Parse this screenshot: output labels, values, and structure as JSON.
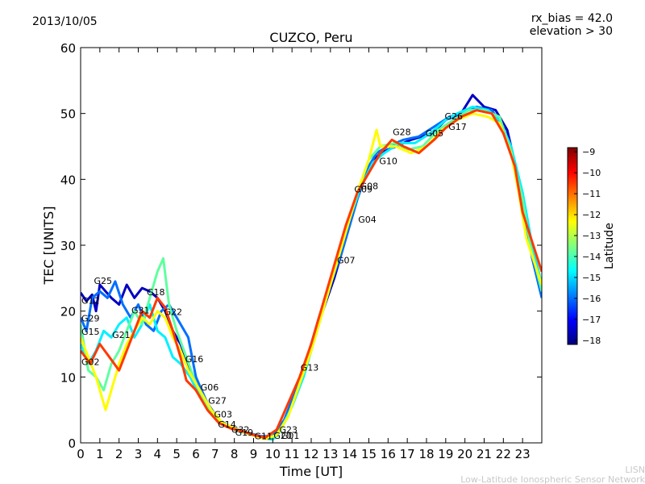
{
  "chart_data": {
    "type": "line",
    "title": "CUZCO, Peru",
    "date": "2013/10/05",
    "rx_bias": "rx_bias = 42.0",
    "elevation": "elevation > 30",
    "xlabel": "Time [UT]",
    "ylabel": "TEC [UNITS]",
    "xlim": [
      0,
      24
    ],
    "ylim": [
      0,
      60
    ],
    "xticks": [
      0,
      1,
      2,
      3,
      4,
      5,
      6,
      7,
      8,
      9,
      10,
      11,
      12,
      13,
      14,
      15,
      16,
      17,
      18,
      19,
      20,
      21,
      22,
      23
    ],
    "yticks": [
      0,
      10,
      20,
      30,
      40,
      50,
      60
    ],
    "grid": false,
    "colorbar": {
      "label": "Latitude",
      "ticks": [
        -9,
        -10,
        -11,
        -12,
        -13,
        -14,
        -15,
        -16,
        -17,
        -18
      ],
      "range": [
        -18.2,
        -8.8
      ],
      "colors": [
        "#00007f",
        "#0000ff",
        "#007fff",
        "#00ffff",
        "#7fff7f",
        "#ffff00",
        "#ff7f00",
        "#ff0000",
        "#7f0000"
      ]
    },
    "series": [
      {
        "name": "G12",
        "lat": -17.6,
        "points": [
          [
            0,
            22.8
          ],
          [
            0.3,
            21.5
          ],
          [
            0.6,
            22.5
          ],
          [
            0.8,
            20
          ],
          [
            1.0,
            24
          ],
          [
            1.3,
            23
          ],
          [
            1.6,
            22
          ],
          [
            2,
            21
          ],
          [
            2.4,
            24
          ],
          [
            2.8,
            22
          ],
          [
            3.2,
            23.5
          ],
          [
            3.6,
            23
          ],
          [
            4,
            22
          ],
          [
            4.4,
            20
          ],
          [
            4.8,
            17
          ],
          [
            5.2,
            15
          ],
          [
            5.6,
            12
          ],
          [
            6,
            8
          ],
          [
            6.5,
            6
          ],
          [
            7,
            4
          ],
          [
            7.5,
            2.8
          ],
          [
            8,
            2
          ],
          [
            8.6,
            1.5
          ],
          [
            9.2,
            1
          ],
          [
            9.8,
            0.6
          ],
          [
            10.3,
            1.8
          ],
          [
            10.8,
            4.5
          ],
          [
            11.4,
            9
          ],
          [
            12,
            15
          ],
          [
            12.6,
            20
          ],
          [
            13.2,
            25
          ],
          [
            13.8,
            31
          ],
          [
            14.4,
            37
          ],
          [
            15,
            42
          ],
          [
            15.6,
            44
          ],
          [
            16.4,
            45
          ],
          [
            17.2,
            46
          ],
          [
            18.3,
            47
          ],
          [
            19,
            49
          ],
          [
            19.8,
            50
          ],
          [
            20.4,
            52.8
          ],
          [
            21,
            51
          ],
          [
            21.6,
            50.5
          ],
          [
            22.2,
            47.5
          ],
          [
            22.8,
            40
          ],
          [
            23.2,
            33
          ],
          [
            23.6,
            27
          ],
          [
            24,
            24
          ]
        ]
      },
      {
        "name": "G25",
        "lat": -16.0,
        "points": [
          [
            0,
            19
          ],
          [
            0.3,
            17
          ],
          [
            0.6,
            22
          ],
          [
            1,
            23
          ],
          [
            1.4,
            22
          ],
          [
            1.8,
            24.5
          ],
          [
            2.2,
            21
          ],
          [
            2.6,
            19
          ],
          [
            3,
            21
          ],
          [
            3.4,
            18
          ],
          [
            3.8,
            17
          ],
          [
            4.2,
            20
          ],
          [
            4.6,
            21
          ],
          [
            5,
            19
          ],
          [
            5.6,
            16
          ],
          [
            6,
            10
          ],
          [
            6.6,
            6
          ],
          [
            7.2,
            3.5
          ],
          [
            7.8,
            2.4
          ],
          [
            8.6,
            1.6
          ],
          [
            9.4,
            1
          ],
          [
            10,
            1
          ],
          [
            10.6,
            3.5
          ],
          [
            11.2,
            8
          ],
          [
            11.8,
            13
          ],
          [
            12.4,
            19
          ],
          [
            13,
            24
          ],
          [
            13.6,
            29
          ],
          [
            14.2,
            35
          ],
          [
            14.8,
            41
          ],
          [
            15.4,
            44
          ],
          [
            16,
            45
          ],
          [
            16.8,
            46
          ],
          [
            17.6,
            46.5
          ],
          [
            18.4,
            48
          ],
          [
            19.2,
            49.5
          ],
          [
            19.8,
            50
          ],
          [
            20.6,
            51
          ],
          [
            21.4,
            50.5
          ],
          [
            22,
            48
          ],
          [
            22.6,
            42
          ],
          [
            23,
            36
          ],
          [
            23.5,
            28
          ],
          [
            24,
            22
          ]
        ]
      },
      {
        "name": "G31",
        "lat": -14.8,
        "points": [
          [
            0,
            15
          ],
          [
            0.4,
            12
          ],
          [
            0.8,
            14
          ],
          [
            1.2,
            17
          ],
          [
            1.6,
            16
          ],
          [
            2.0,
            18
          ],
          [
            2.4,
            19
          ],
          [
            2.8,
            16
          ],
          [
            3.2,
            18
          ],
          [
            3.6,
            21
          ],
          [
            4.0,
            17
          ],
          [
            4.4,
            16
          ],
          [
            4.8,
            13
          ],
          [
            5.2,
            12
          ],
          [
            5.7,
            10
          ],
          [
            6.2,
            7
          ],
          [
            6.8,
            4.5
          ],
          [
            7.4,
            3
          ],
          [
            8,
            2
          ],
          [
            8.6,
            1.6
          ],
          [
            9.4,
            0.8
          ],
          [
            10,
            0.5
          ],
          [
            10.4,
            2
          ],
          [
            11,
            5.5
          ],
          [
            11.6,
            10
          ],
          [
            12.2,
            16
          ],
          [
            12.8,
            22
          ],
          [
            13.4,
            28
          ],
          [
            14,
            34
          ],
          [
            14.6,
            39
          ],
          [
            15.2,
            42.5
          ],
          [
            15.8,
            44
          ],
          [
            16.6,
            45.5
          ],
          [
            17.4,
            45.5
          ],
          [
            18.2,
            47
          ],
          [
            19,
            49
          ],
          [
            19.6,
            50
          ],
          [
            20.4,
            51
          ],
          [
            21.2,
            50.5
          ],
          [
            21.8,
            49
          ],
          [
            22.4,
            45
          ],
          [
            23,
            38
          ],
          [
            23.5,
            30
          ],
          [
            24,
            24
          ]
        ]
      },
      {
        "name": "G29",
        "lat": -13.8,
        "points": [
          [
            0,
            18
          ],
          [
            0.4,
            11
          ],
          [
            0.8,
            10
          ],
          [
            1.2,
            8
          ],
          [
            1.6,
            12
          ],
          [
            2,
            14
          ],
          [
            2.4,
            17
          ],
          [
            2.8,
            20
          ],
          [
            3.2,
            18
          ],
          [
            3.6,
            22
          ],
          [
            4.0,
            26
          ],
          [
            4.3,
            28
          ],
          [
            4.6,
            21
          ],
          [
            5,
            17
          ],
          [
            5.5,
            13
          ],
          [
            6,
            9
          ],
          [
            6.5,
            6
          ],
          [
            7,
            3.8
          ],
          [
            7.6,
            2.5
          ],
          [
            8.2,
            1.8
          ],
          [
            9,
            1.2
          ],
          [
            9.6,
            0.6
          ],
          [
            10.2,
            1
          ],
          [
            10.8,
            4
          ],
          [
            11.4,
            9
          ],
          [
            12,
            14
          ],
          [
            12.6,
            20
          ],
          [
            13.2,
            26
          ],
          [
            13.8,
            32
          ],
          [
            14.4,
            38
          ],
          [
            15,
            43
          ],
          [
            15.6,
            45
          ],
          [
            16.4,
            45.5
          ],
          [
            17,
            44.5
          ],
          [
            17.8,
            45
          ],
          [
            18.6,
            47.5
          ],
          [
            19.4,
            49
          ],
          [
            20.2,
            50.5
          ],
          [
            21,
            50.5
          ],
          [
            21.8,
            49.5
          ],
          [
            22.4,
            44
          ],
          [
            23,
            37
          ],
          [
            23.4,
            30
          ],
          [
            24,
            23
          ]
        ]
      },
      {
        "name": "G15",
        "lat": -12.3,
        "points": [
          [
            0,
            16
          ],
          [
            0.4,
            13
          ],
          [
            0.8,
            10
          ],
          [
            1.1,
            7
          ],
          [
            1.3,
            5
          ],
          [
            1.6,
            8
          ],
          [
            2,
            12
          ],
          [
            2.4,
            15
          ],
          [
            2.8,
            17
          ],
          [
            3.2,
            19
          ],
          [
            3.6,
            18
          ],
          [
            4,
            20
          ],
          [
            4.4,
            19
          ],
          [
            4.8,
            16
          ],
          [
            5.2,
            14
          ],
          [
            5.6,
            11
          ],
          [
            6.2,
            8
          ],
          [
            6.8,
            5
          ],
          [
            7.4,
            3
          ],
          [
            8,
            2.2
          ],
          [
            8.8,
            1.3
          ],
          [
            9.6,
            0.6
          ],
          [
            10.2,
            1.2
          ],
          [
            10.8,
            4
          ],
          [
            11.4,
            9
          ],
          [
            12,
            14
          ],
          [
            12.6,
            20
          ],
          [
            13.2,
            26
          ],
          [
            13.8,
            32
          ],
          [
            14.4,
            38
          ],
          [
            15,
            43
          ],
          [
            15.4,
            47.5
          ],
          [
            15.6,
            45
          ],
          [
            16.4,
            45
          ],
          [
            17.2,
            44
          ],
          [
            18,
            45
          ],
          [
            18.8,
            47.5
          ],
          [
            19.6,
            49
          ],
          [
            20.4,
            50
          ],
          [
            21.2,
            49.5
          ],
          [
            21.8,
            48.5
          ],
          [
            22.4,
            44
          ],
          [
            22.8,
            38
          ],
          [
            23.2,
            31
          ],
          [
            24,
            24
          ]
        ]
      },
      {
        "name": "G21",
        "lat": -10.5,
        "points": [
          [
            0,
            14
          ],
          [
            0.5,
            12
          ],
          [
            1,
            15
          ],
          [
            1.5,
            13
          ],
          [
            2,
            11
          ],
          [
            2.4,
            14
          ],
          [
            2.8,
            17
          ],
          [
            3.2,
            20
          ],
          [
            3.6,
            19
          ],
          [
            4,
            22
          ],
          [
            4.4,
            20.5
          ],
          [
            4.8,
            17
          ],
          [
            5.2,
            13
          ],
          [
            5.5,
            9.5
          ],
          [
            6,
            8
          ],
          [
            6.6,
            5
          ],
          [
            7.2,
            3
          ],
          [
            7.8,
            2.2
          ],
          [
            8.4,
            1.8
          ],
          [
            9,
            1.2
          ],
          [
            9.6,
            0.8
          ],
          [
            10.2,
            2
          ],
          [
            10.8,
            6
          ],
          [
            11.4,
            10
          ],
          [
            12,
            15
          ],
          [
            12.6,
            21
          ],
          [
            13.2,
            27
          ],
          [
            13.8,
            33
          ],
          [
            14.4,
            38
          ],
          [
            15,
            41
          ],
          [
            15.6,
            44
          ],
          [
            16.2,
            46
          ],
          [
            16.8,
            45
          ],
          [
            17.6,
            44
          ],
          [
            18.4,
            46
          ],
          [
            19,
            47.8
          ],
          [
            19.8,
            49.5
          ],
          [
            20.6,
            50.5
          ],
          [
            21.4,
            50
          ],
          [
            22,
            47
          ],
          [
            22.6,
            42
          ],
          [
            23,
            35
          ],
          [
            24,
            26
          ]
        ]
      }
    ],
    "annotations": [
      {
        "text": "G25",
        "x": 0.65,
        "y": 24.5
      },
      {
        "text": "G12",
        "x": 0.0,
        "y": 21.5
      },
      {
        "text": "G31",
        "x": 2.6,
        "y": 20.0
      },
      {
        "text": "G18",
        "x": 3.4,
        "y": 22.8
      },
      {
        "text": "G22",
        "x": 4.3,
        "y": 19.8
      },
      {
        "text": "G29",
        "x": 0.0,
        "y": 18.8
      },
      {
        "text": "G15",
        "x": 0.0,
        "y": 16.8
      },
      {
        "text": "G21",
        "x": 1.6,
        "y": 16.3
      },
      {
        "text": "G16",
        "x": 5.4,
        "y": 12.6
      },
      {
        "text": "G02",
        "x": 0.0,
        "y": 12.2
      },
      {
        "text": "G06",
        "x": 6.2,
        "y": 8.3
      },
      {
        "text": "G27",
        "x": 6.6,
        "y": 6.3
      },
      {
        "text": "G03",
        "x": 6.9,
        "y": 4.2
      },
      {
        "text": "G14",
        "x": 7.1,
        "y": 2.7
      },
      {
        "text": "G32",
        "x": 7.8,
        "y": 1.9
      },
      {
        "text": "G19",
        "x": 8.0,
        "y": 1.5
      },
      {
        "text": "G11",
        "x": 9.0,
        "y": 0.9
      },
      {
        "text": "G23",
        "x": 10.3,
        "y": 1.9
      },
      {
        "text": "G20",
        "x": 10.0,
        "y": 1.0
      },
      {
        "text": "G01",
        "x": 10.4,
        "y": 1.0
      },
      {
        "text": "G13",
        "x": 11.4,
        "y": 11.3
      },
      {
        "text": "G07",
        "x": 13.3,
        "y": 27.6
      },
      {
        "text": "G04",
        "x": 14.4,
        "y": 33.8
      },
      {
        "text": "G09",
        "x": 14.2,
        "y": 38.4
      },
      {
        "text": "G08",
        "x": 14.5,
        "y": 38.9
      },
      {
        "text": "G10",
        "x": 15.5,
        "y": 42.7
      },
      {
        "text": "G28",
        "x": 16.2,
        "y": 47.1
      },
      {
        "text": "G05",
        "x": 17.9,
        "y": 46.9
      },
      {
        "text": "G17",
        "x": 19.1,
        "y": 47.9
      },
      {
        "text": "G26",
        "x": 18.9,
        "y": 49.5
      }
    ]
  },
  "footer": {
    "line1": "LISN",
    "line2": "Low-Latitude Ionospheric Sensor Network"
  }
}
